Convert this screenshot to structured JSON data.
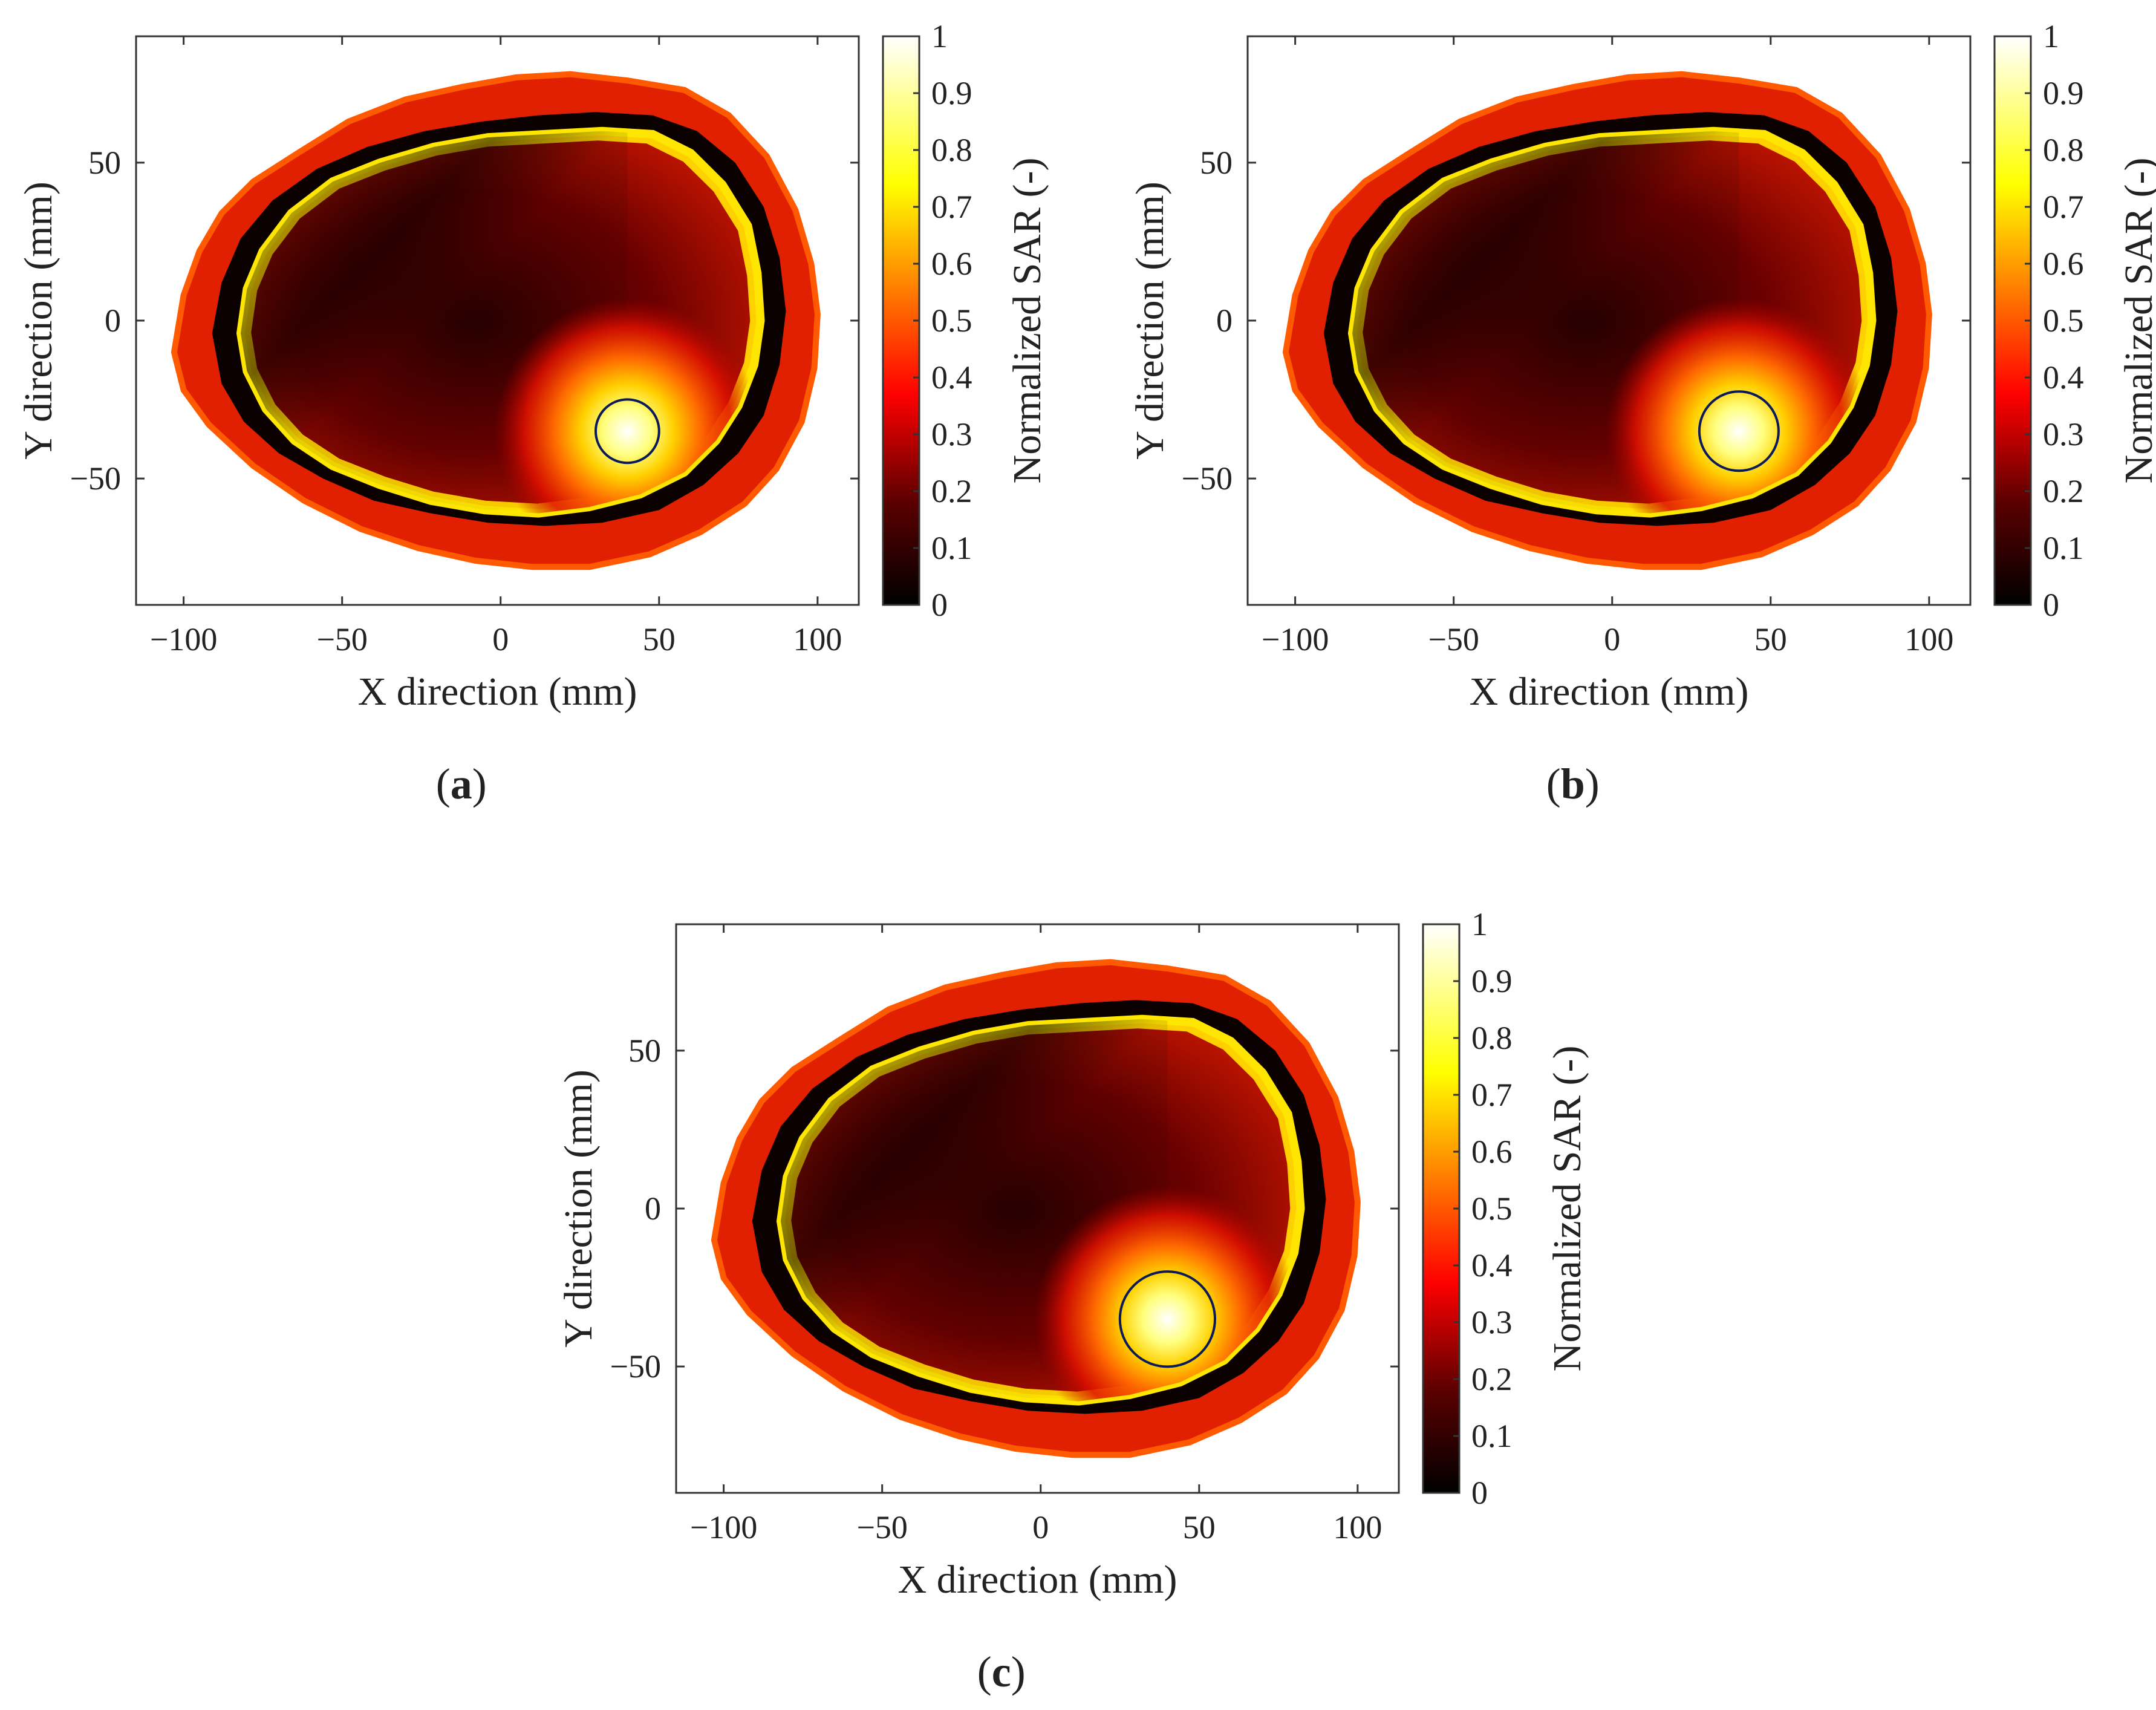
{
  "chart_data": [
    {
      "type": "heatmap",
      "panel_label": "a",
      "xlabel": "X direction (mm)",
      "ylabel": "Y direction (mm)",
      "xlim": [
        -115,
        113
      ],
      "ylim": [
        -90,
        90
      ],
      "xticks": [
        -100,
        -50,
        0,
        50,
        100
      ],
      "yticks": [
        -50,
        0,
        50
      ],
      "colorbar_label": "Normalized SAR (-)",
      "colorbar_range": [
        0,
        1
      ],
      "colorbar_ticks": [
        0,
        0.1,
        0.2,
        0.3,
        0.4,
        0.5,
        0.6,
        0.7,
        0.8,
        0.9,
        1
      ],
      "colormap": "hot",
      "target": {
        "x": 40,
        "y": -35,
        "radius": 10
      },
      "hotspot": {
        "x": 40,
        "y": -35,
        "peak_sar": 1.0
      }
    },
    {
      "type": "heatmap",
      "panel_label": "b",
      "xlabel": "X direction (mm)",
      "ylabel": "Y direction (mm)",
      "xlim": [
        -115,
        113
      ],
      "ylim": [
        -90,
        90
      ],
      "xticks": [
        -100,
        -50,
        0,
        50,
        100
      ],
      "yticks": [
        -50,
        0,
        50
      ],
      "colorbar_label": "Normalized SAR (-)",
      "colorbar_range": [
        0,
        1
      ],
      "colorbar_ticks": [
        0,
        0.1,
        0.2,
        0.3,
        0.4,
        0.5,
        0.6,
        0.7,
        0.8,
        0.9,
        1
      ],
      "colormap": "hot",
      "target": {
        "x": 40,
        "y": -35,
        "radius": 12.5
      },
      "hotspot": {
        "x": 40,
        "y": -35,
        "peak_sar": 1.0
      }
    },
    {
      "type": "heatmap",
      "panel_label": "c",
      "xlabel": "X direction (mm)",
      "ylabel": "Y direction (mm)",
      "xlim": [
        -115,
        113
      ],
      "ylim": [
        -90,
        90
      ],
      "xticks": [
        -100,
        -50,
        0,
        50,
        100
      ],
      "yticks": [
        -50,
        0,
        50
      ],
      "colorbar_label": "Normalized SAR (-)",
      "colorbar_range": [
        0,
        1
      ],
      "colorbar_ticks": [
        0,
        0.1,
        0.2,
        0.3,
        0.4,
        0.5,
        0.6,
        0.7,
        0.8,
        0.9,
        1
      ],
      "colormap": "hot",
      "target": {
        "x": 40,
        "y": -35,
        "radius": 15
      },
      "hotspot": {
        "x": 40,
        "y": -35,
        "peak_sar": 1.0
      }
    }
  ],
  "outline_mm": {
    "outer": [
      [
        -103,
        -10
      ],
      [
        -100,
        8
      ],
      [
        -95,
        22
      ],
      [
        -88,
        34
      ],
      [
        -78,
        44
      ],
      [
        -64,
        53
      ],
      [
        -48,
        63
      ],
      [
        -30,
        70
      ],
      [
        -12,
        74
      ],
      [
        5,
        77
      ],
      [
        22,
        78
      ],
      [
        40,
        76
      ],
      [
        58,
        73
      ],
      [
        72,
        65
      ],
      [
        84,
        52
      ],
      [
        93,
        35
      ],
      [
        98,
        18
      ],
      [
        100,
        2
      ],
      [
        99,
        -15
      ],
      [
        95,
        -32
      ],
      [
        87,
        -47
      ],
      [
        77,
        -58
      ],
      [
        63,
        -67
      ],
      [
        47,
        -74
      ],
      [
        28,
        -78
      ],
      [
        10,
        -78
      ],
      [
        -8,
        -76
      ],
      [
        -26,
        -72
      ],
      [
        -44,
        -66
      ],
      [
        -62,
        -57
      ],
      [
        -78,
        -46
      ],
      [
        -92,
        -33
      ],
      [
        -100,
        -22
      ]
    ],
    "skin": [
      [
        -91,
        -4
      ],
      [
        -88,
        12
      ],
      [
        -82,
        26
      ],
      [
        -72,
        38
      ],
      [
        -58,
        48
      ],
      [
        -42,
        55
      ],
      [
        -24,
        60
      ],
      [
        -6,
        63
      ],
      [
        12,
        65
      ],
      [
        30,
        66
      ],
      [
        48,
        65
      ],
      [
        62,
        60
      ],
      [
        74,
        50
      ],
      [
        83,
        36
      ],
      [
        88,
        20
      ],
      [
        90,
        3
      ],
      [
        88,
        -14
      ],
      [
        83,
        -30
      ],
      [
        75,
        -42
      ],
      [
        64,
        -52
      ],
      [
        50,
        -60
      ],
      [
        32,
        -64
      ],
      [
        14,
        -65
      ],
      [
        -4,
        -64
      ],
      [
        -22,
        -61
      ],
      [
        -40,
        -57
      ],
      [
        -56,
        -50
      ],
      [
        -70,
        -42
      ],
      [
        -81,
        -32
      ],
      [
        -88,
        -20
      ]
    ],
    "brain": [
      [
        -82,
        -4
      ],
      [
        -80,
        10
      ],
      [
        -75,
        22
      ],
      [
        -66,
        34
      ],
      [
        -53,
        44
      ],
      [
        -38,
        50
      ],
      [
        -21,
        55
      ],
      [
        -4,
        58
      ],
      [
        14,
        59
      ],
      [
        32,
        60
      ],
      [
        48,
        59
      ],
      [
        60,
        53
      ],
      [
        70,
        43
      ],
      [
        78,
        30
      ],
      [
        81,
        15
      ],
      [
        82,
        0
      ],
      [
        80,
        -14
      ],
      [
        75,
        -27
      ],
      [
        68,
        -38
      ],
      [
        58,
        -48
      ],
      [
        44,
        -55
      ],
      [
        28,
        -59
      ],
      [
        12,
        -61
      ],
      [
        -5,
        -60
      ],
      [
        -22,
        -57
      ],
      [
        -38,
        -52
      ],
      [
        -53,
        -46
      ],
      [
        -65,
        -38
      ],
      [
        -74,
        -28
      ],
      [
        -80,
        -16
      ]
    ]
  }
}
